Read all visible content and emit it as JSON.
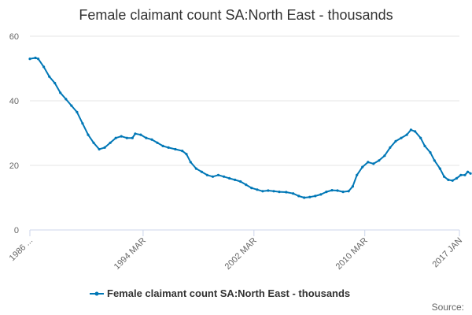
{
  "chart_data": {
    "type": "line",
    "title": "Female claimant count SA:North East - thousands",
    "xlabel": "",
    "ylabel": "",
    "ylim": [
      0,
      60
    ],
    "yticks": [
      0,
      20,
      40,
      60
    ],
    "xlim": [
      1986.0,
      2017.0
    ],
    "xtick_labels": [
      {
        "x": 1986.0,
        "label": "1986 ..."
      },
      {
        "x": 1994.17,
        "label": "1994 MAR"
      },
      {
        "x": 2002.17,
        "label": "2002 MAR"
      },
      {
        "x": 2010.17,
        "label": "2010 MAR"
      },
      {
        "x": 2017.0,
        "label": "2017 JAN"
      }
    ],
    "legend": "bottom-center",
    "grid": "horizontal",
    "series": [
      {
        "name": "Female claimant count SA:North East - thousands",
        "color": "#0077b6",
        "points": [
          [
            1986.0,
            53.0
          ],
          [
            1986.4,
            53.3
          ],
          [
            1986.6,
            53.0
          ],
          [
            1987.0,
            50.5
          ],
          [
            1987.4,
            47.5
          ],
          [
            1987.8,
            45.5
          ],
          [
            1988.2,
            42.5
          ],
          [
            1988.6,
            40.5
          ],
          [
            1989.0,
            38.5
          ],
          [
            1989.4,
            36.5
          ],
          [
            1989.8,
            33.0
          ],
          [
            1990.2,
            29.5
          ],
          [
            1990.6,
            27.0
          ],
          [
            1991.0,
            25.0
          ],
          [
            1991.4,
            25.5
          ],
          [
            1991.8,
            27.0
          ],
          [
            1992.2,
            28.5
          ],
          [
            1992.6,
            29.0
          ],
          [
            1993.0,
            28.5
          ],
          [
            1993.4,
            28.5
          ],
          [
            1993.6,
            29.8
          ],
          [
            1994.0,
            29.5
          ],
          [
            1994.4,
            28.5
          ],
          [
            1994.8,
            28.0
          ],
          [
            1995.2,
            27.0
          ],
          [
            1995.6,
            26.0
          ],
          [
            1996.0,
            25.5
          ],
          [
            1996.5,
            25.0
          ],
          [
            1997.0,
            24.5
          ],
          [
            1997.3,
            23.5
          ],
          [
            1997.6,
            21.0
          ],
          [
            1998.0,
            19.0
          ],
          [
            1998.4,
            18.0
          ],
          [
            1998.8,
            17.0
          ],
          [
            1999.2,
            16.5
          ],
          [
            1999.6,
            17.0
          ],
          [
            2000.0,
            16.5
          ],
          [
            2000.4,
            16.0
          ],
          [
            2000.8,
            15.5
          ],
          [
            2001.2,
            15.0
          ],
          [
            2001.6,
            14.0
          ],
          [
            2002.0,
            13.0
          ],
          [
            2002.4,
            12.5
          ],
          [
            2002.8,
            12.0
          ],
          [
            2003.2,
            12.2
          ],
          [
            2003.6,
            12.0
          ],
          [
            2004.0,
            11.8
          ],
          [
            2004.5,
            11.7
          ],
          [
            2005.0,
            11.3
          ],
          [
            2005.4,
            10.5
          ],
          [
            2005.8,
            10.0
          ],
          [
            2006.2,
            10.2
          ],
          [
            2006.6,
            10.5
          ],
          [
            2007.0,
            11.0
          ],
          [
            2007.4,
            11.8
          ],
          [
            2007.8,
            12.3
          ],
          [
            2008.2,
            12.2
          ],
          [
            2008.6,
            11.8
          ],
          [
            2009.0,
            12.0
          ],
          [
            2009.3,
            13.5
          ],
          [
            2009.6,
            17.0
          ],
          [
            2010.0,
            19.5
          ],
          [
            2010.4,
            21.0
          ],
          [
            2010.8,
            20.5
          ],
          [
            2011.2,
            21.5
          ],
          [
            2011.6,
            23.0
          ],
          [
            2012.0,
            25.5
          ],
          [
            2012.4,
            27.5
          ],
          [
            2012.8,
            28.5
          ],
          [
            2013.2,
            29.5
          ],
          [
            2013.5,
            31.0
          ],
          [
            2013.8,
            30.5
          ],
          [
            2014.2,
            28.5
          ],
          [
            2014.5,
            26.0
          ],
          [
            2014.9,
            24.0
          ],
          [
            2015.2,
            21.5
          ],
          [
            2015.6,
            19.0
          ],
          [
            2015.9,
            16.5
          ],
          [
            2016.2,
            15.5
          ],
          [
            2016.5,
            15.3
          ],
          [
            2016.8,
            16.0
          ],
          [
            2017.1,
            17.0
          ],
          [
            2017.4,
            17.0
          ],
          [
            2017.6,
            18.0
          ],
          [
            2017.8,
            17.5
          ]
        ]
      }
    ],
    "credits": "Source:"
  }
}
